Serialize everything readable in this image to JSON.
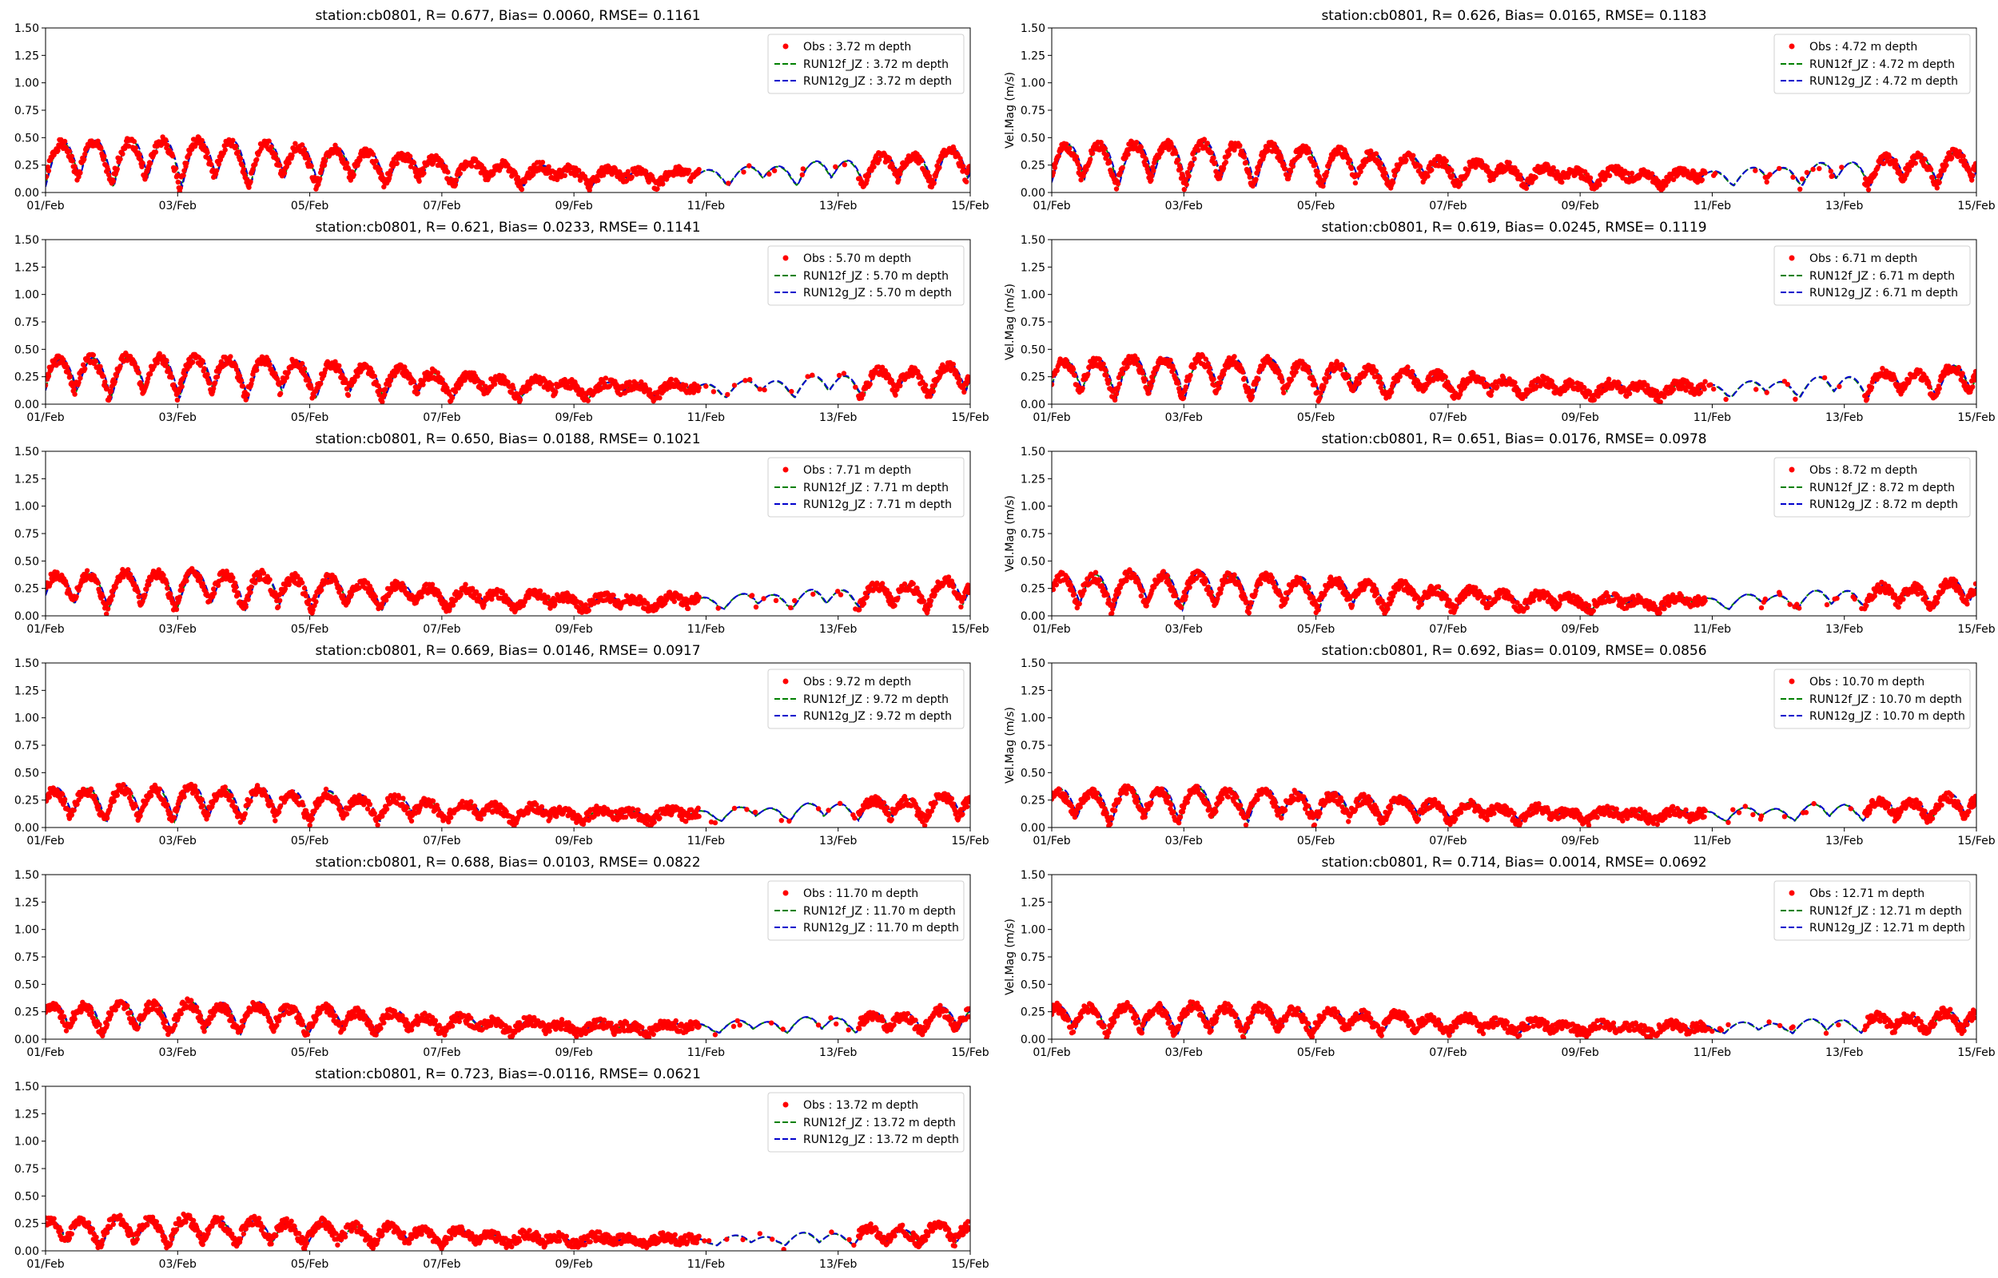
{
  "colors": {
    "obs": "#ff0000",
    "run12f": "#008000",
    "run12g": "#0000cc"
  },
  "chart_data": [
    {
      "type": "scatter",
      "title": "station:cb0801, R= 0.677, Bias= 0.0060, RMSE= 0.1161",
      "ylabel": "",
      "ylim": [
        0,
        1.5
      ],
      "xlim": [
        "2000-02-01",
        "2000-02-15"
      ],
      "yticks": [
        "0.00",
        "0.25",
        "0.50",
        "0.75",
        "1.00",
        "1.25",
        "1.50"
      ],
      "xticks": [
        "01/Feb",
        "03/Feb",
        "05/Feb",
        "07/Feb",
        "09/Feb",
        "11/Feb",
        "13/Feb",
        "15/Feb"
      ],
      "legend_position": "top-right",
      "legend": [
        "Obs : 3.72 m depth",
        "RUN12f_JZ : 3.72 m depth",
        "RUN12g_JZ : 3.72 m depth"
      ],
      "obs_amp": 1.0,
      "model_amp": 1.05,
      "seed": 1
    },
    {
      "type": "scatter",
      "title": "station:cb0801, R= 0.626, Bias= 0.0165, RMSE= 0.1183",
      "ylabel": "Vel.Mag (m/s)",
      "ylim": [
        0,
        1.5
      ],
      "xlim": [
        "2000-02-01",
        "2000-02-15"
      ],
      "yticks": [
        "0.00",
        "0.25",
        "0.50",
        "0.75",
        "1.00",
        "1.25",
        "1.50"
      ],
      "xticks": [
        "01/Feb",
        "03/Feb",
        "05/Feb",
        "07/Feb",
        "09/Feb",
        "11/Feb",
        "13/Feb",
        "15/Feb"
      ],
      "legend_position": "top-right",
      "legend": [
        "Obs : 4.72 m depth",
        "RUN12f_JZ : 4.72 m depth",
        "RUN12g_JZ : 4.72 m depth"
      ],
      "obs_amp": 0.95,
      "model_amp": 1.0,
      "seed": 2
    },
    {
      "type": "scatter",
      "title": "station:cb0801, R= 0.621, Bias= 0.0233, RMSE= 0.1141",
      "ylabel": "",
      "ylim": [
        0,
        1.5
      ],
      "xlim": [
        "2000-02-01",
        "2000-02-15"
      ],
      "yticks": [
        "0.00",
        "0.25",
        "0.50",
        "0.75",
        "1.00",
        "1.25",
        "1.50"
      ],
      "xticks": [
        "01/Feb",
        "03/Feb",
        "05/Feb",
        "07/Feb",
        "09/Feb",
        "11/Feb",
        "13/Feb",
        "15/Feb"
      ],
      "legend_position": "top-right",
      "legend": [
        "Obs : 5.70 m depth",
        "RUN12f_JZ : 5.70 m depth",
        "RUN12g_JZ : 5.70 m depth"
      ],
      "obs_amp": 0.92,
      "model_amp": 0.95,
      "seed": 3
    },
    {
      "type": "scatter",
      "title": "station:cb0801, R= 0.619, Bias= 0.0245, RMSE= 0.1119",
      "ylabel": "Vel.Mag (m/s)",
      "ylim": [
        0,
        1.5
      ],
      "xlim": [
        "2000-02-01",
        "2000-02-15"
      ],
      "yticks": [
        "0.00",
        "0.25",
        "0.50",
        "0.75",
        "1.00",
        "1.25",
        "1.50"
      ],
      "xticks": [
        "01/Feb",
        "03/Feb",
        "05/Feb",
        "07/Feb",
        "09/Feb",
        "11/Feb",
        "13/Feb",
        "15/Feb"
      ],
      "legend_position": "top-right",
      "legend": [
        "Obs : 6.71 m depth",
        "RUN12f_JZ : 6.71 m depth",
        "RUN12g_JZ : 6.71 m depth"
      ],
      "obs_amp": 0.88,
      "model_amp": 0.92,
      "seed": 4
    },
    {
      "type": "scatter",
      "title": "station:cb0801, R= 0.650, Bias= 0.0188, RMSE= 0.1021",
      "ylabel": "",
      "ylim": [
        0,
        1.5
      ],
      "xlim": [
        "2000-02-01",
        "2000-02-15"
      ],
      "yticks": [
        "0.00",
        "0.25",
        "0.50",
        "0.75",
        "1.00",
        "1.25",
        "1.50"
      ],
      "xticks": [
        "01/Feb",
        "03/Feb",
        "05/Feb",
        "07/Feb",
        "09/Feb",
        "11/Feb",
        "13/Feb",
        "15/Feb"
      ],
      "legend_position": "top-right",
      "legend": [
        "Obs : 7.71 m depth",
        "RUN12f_JZ : 7.71 m depth",
        "RUN12g_JZ : 7.71 m depth"
      ],
      "obs_amp": 0.84,
      "model_amp": 0.88,
      "seed": 5
    },
    {
      "type": "scatter",
      "title": "station:cb0801, R= 0.651, Bias= 0.0176, RMSE= 0.0978",
      "ylabel": "Vel.Mag (m/s)",
      "ylim": [
        0,
        1.5
      ],
      "xlim": [
        "2000-02-01",
        "2000-02-15"
      ],
      "yticks": [
        "0.00",
        "0.25",
        "0.50",
        "0.75",
        "1.00",
        "1.25",
        "1.50"
      ],
      "xticks": [
        "01/Feb",
        "03/Feb",
        "05/Feb",
        "07/Feb",
        "09/Feb",
        "11/Feb",
        "13/Feb",
        "15/Feb"
      ],
      "legend_position": "top-right",
      "legend": [
        "Obs : 8.72 m depth",
        "RUN12f_JZ : 8.72 m depth",
        "RUN12g_JZ : 8.72 m depth"
      ],
      "obs_amp": 0.8,
      "model_amp": 0.86,
      "seed": 6
    },
    {
      "type": "scatter",
      "title": "station:cb0801, R= 0.669, Bias= 0.0146, RMSE= 0.0917",
      "ylabel": "",
      "ylim": [
        0,
        1.5
      ],
      "xlim": [
        "2000-02-01",
        "2000-02-15"
      ],
      "yticks": [
        "0.00",
        "0.25",
        "0.50",
        "0.75",
        "1.00",
        "1.25",
        "1.50"
      ],
      "xticks": [
        "01/Feb",
        "03/Feb",
        "05/Feb",
        "07/Feb",
        "09/Feb",
        "11/Feb",
        "13/Feb",
        "15/Feb"
      ],
      "legend_position": "top-right",
      "legend": [
        "Obs : 9.72 m depth",
        "RUN12f_JZ : 9.72 m depth",
        "RUN12g_JZ : 9.72 m depth"
      ],
      "obs_amp": 0.76,
      "model_amp": 0.82,
      "seed": 7
    },
    {
      "type": "scatter",
      "title": "station:cb0801, R= 0.692, Bias= 0.0109, RMSE= 0.0856",
      "ylabel": "Vel.Mag (m/s)",
      "ylim": [
        0,
        1.5
      ],
      "xlim": [
        "2000-02-01",
        "2000-02-15"
      ],
      "yticks": [
        "0.00",
        "0.25",
        "0.50",
        "0.75",
        "1.00",
        "1.25",
        "1.50"
      ],
      "xticks": [
        "01/Feb",
        "03/Feb",
        "05/Feb",
        "07/Feb",
        "09/Feb",
        "11/Feb",
        "13/Feb",
        "15/Feb"
      ],
      "legend_position": "top-right",
      "legend": [
        "Obs : 10.70 m depth",
        "RUN12f_JZ : 10.70 m depth",
        "RUN12g_JZ : 10.70 m depth"
      ],
      "obs_amp": 0.72,
      "model_amp": 0.8,
      "seed": 8
    },
    {
      "type": "scatter",
      "title": "station:cb0801, R= 0.688, Bias= 0.0103, RMSE= 0.0822",
      "ylabel": "",
      "ylim": [
        0,
        1.5
      ],
      "xlim": [
        "2000-02-01",
        "2000-02-15"
      ],
      "yticks": [
        "0.00",
        "0.25",
        "0.50",
        "0.75",
        "1.00",
        "1.25",
        "1.50"
      ],
      "xticks": [
        "01/Feb",
        "03/Feb",
        "05/Feb",
        "07/Feb",
        "09/Feb",
        "11/Feb",
        "13/Feb",
        "15/Feb"
      ],
      "legend_position": "top-right",
      "legend": [
        "Obs : 11.70 m depth",
        "RUN12f_JZ : 11.70 m depth",
        "RUN12g_JZ : 11.70 m depth"
      ],
      "obs_amp": 0.68,
      "model_amp": 0.75,
      "seed": 9
    },
    {
      "type": "scatter",
      "title": "station:cb0801, R= 0.714, Bias= 0.0014, RMSE= 0.0692",
      "ylabel": "Vel.Mag (m/s)",
      "ylim": [
        0,
        1.5
      ],
      "xlim": [
        "2000-02-01",
        "2000-02-15"
      ],
      "yticks": [
        "0.00",
        "0.25",
        "0.50",
        "0.75",
        "1.00",
        "1.25",
        "1.50"
      ],
      "xticks": [
        "01/Feb",
        "03/Feb",
        "05/Feb",
        "07/Feb",
        "09/Feb",
        "11/Feb",
        "13/Feb",
        "15/Feb"
      ],
      "legend_position": "top-right",
      "legend": [
        "Obs : 12.71 m depth",
        "RUN12f_JZ : 12.71 m depth",
        "RUN12g_JZ : 12.71 m depth"
      ],
      "obs_amp": 0.64,
      "model_amp": 0.68,
      "seed": 10
    },
    {
      "type": "scatter",
      "title": "station:cb0801, R= 0.723, Bias=-0.0116, RMSE= 0.0621",
      "ylabel": "",
      "ylim": [
        0,
        1.5
      ],
      "xlim": [
        "2000-02-01",
        "2000-02-15"
      ],
      "yticks": [
        "0.00",
        "0.25",
        "0.50",
        "0.75",
        "1.00",
        "1.25",
        "1.50"
      ],
      "xticks": [
        "01/Feb",
        "03/Feb",
        "05/Feb",
        "07/Feb",
        "09/Feb",
        "11/Feb",
        "13/Feb",
        "15/Feb"
      ],
      "legend_position": "top-right",
      "legend": [
        "Obs : 13.72 m depth",
        "RUN12f_JZ : 13.72 m depth",
        "RUN12g_JZ : 13.72 m depth"
      ],
      "obs_amp": 0.62,
      "model_amp": 0.62,
      "seed": 11
    }
  ]
}
